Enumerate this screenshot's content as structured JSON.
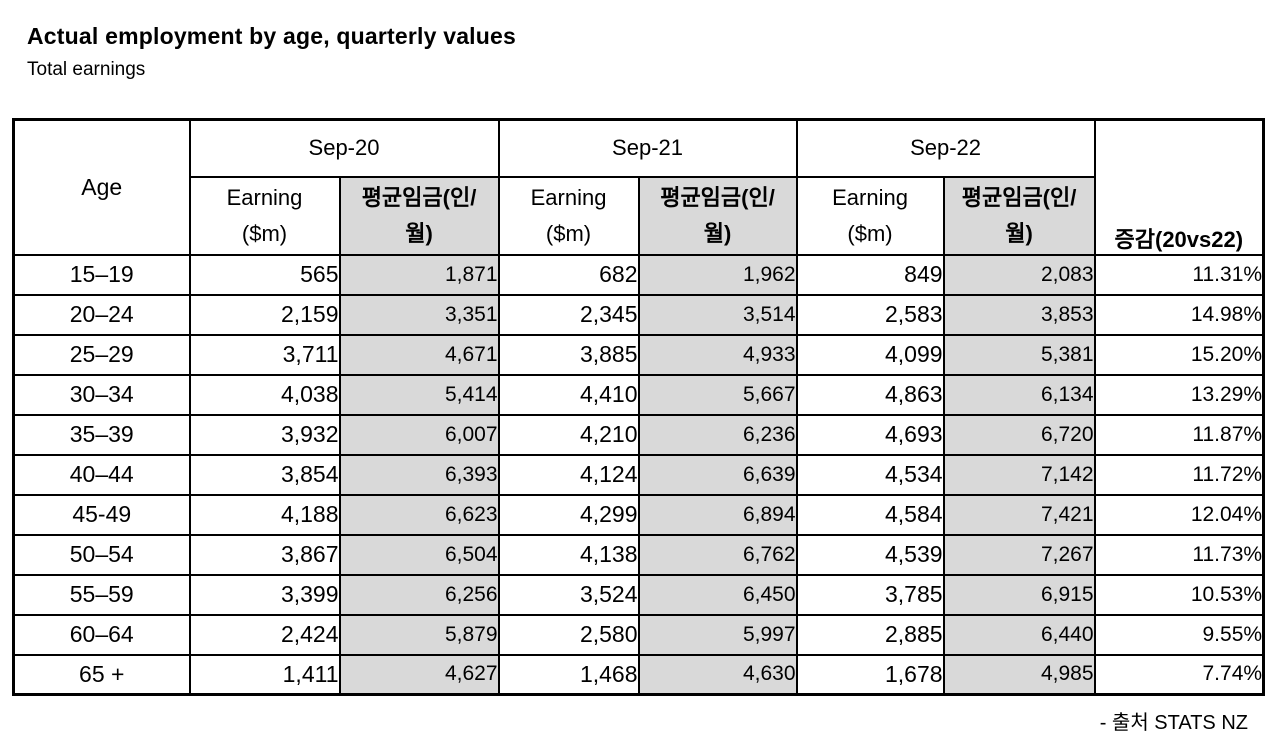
{
  "page": {
    "title": "Actual employment by age, quarterly values",
    "subtitle": "Total earnings",
    "source_note": "- 출처 STATS NZ"
  },
  "table": {
    "corner_label": "Age",
    "change_label": "증감(20vs22)",
    "groups": [
      {
        "label": "Sep-20"
      },
      {
        "label": "Sep-21"
      },
      {
        "label": "Sep-22"
      }
    ],
    "sub_headers": {
      "earning_line1": "Earning",
      "earning_line2": "($m)",
      "avg_line1": "평균임금(인/",
      "avg_line2": "월)"
    },
    "column_kinds": [
      "age",
      "earn",
      "avg",
      "earn",
      "avg",
      "earn",
      "avg",
      "pct"
    ],
    "rows": [
      {
        "cells": [
          "15–19",
          "565",
          "1,871",
          "682",
          "1,962",
          "849",
          "2,083",
          "11.31%"
        ]
      },
      {
        "cells": [
          "20–24",
          "2,159",
          "3,351",
          "2,345",
          "3,514",
          "2,583",
          "3,853",
          "14.98%"
        ]
      },
      {
        "cells": [
          "25–29",
          "3,711",
          "4,671",
          "3,885",
          "4,933",
          "4,099",
          "5,381",
          "15.20%"
        ]
      },
      {
        "cells": [
          "30–34",
          "4,038",
          "5,414",
          "4,410",
          "5,667",
          "4,863",
          "6,134",
          "13.29%"
        ]
      },
      {
        "cells": [
          "35–39",
          "3,932",
          "6,007",
          "4,210",
          "6,236",
          "4,693",
          "6,720",
          "11.87%"
        ]
      },
      {
        "cells": [
          "40–44",
          "3,854",
          "6,393",
          "4,124",
          "6,639",
          "4,534",
          "7,142",
          "11.72%"
        ]
      },
      {
        "cells": [
          "45-49",
          "4,188",
          "6,623",
          "4,299",
          "6,894",
          "4,584",
          "7,421",
          "12.04%"
        ]
      },
      {
        "cells": [
          "50–54",
          "3,867",
          "6,504",
          "4,138",
          "6,762",
          "4,539",
          "7,267",
          "11.73%"
        ]
      },
      {
        "cells": [
          "55–59",
          "3,399",
          "6,256",
          "3,524",
          "6,450",
          "3,785",
          "6,915",
          "10.53%"
        ]
      },
      {
        "cells": [
          "60–64",
          "2,424",
          "5,879",
          "2,580",
          "5,997",
          "2,885",
          "6,440",
          "9.55%"
        ]
      },
      {
        "cells": [
          "65 +",
          "1,411",
          "4,627",
          "1,468",
          "4,630",
          "1,678",
          "4,985",
          "7.74%"
        ]
      }
    ]
  },
  "chart_data": {
    "type": "table",
    "title": "Actual employment by age, quarterly values",
    "subtitle": "Total earnings",
    "categories": [
      "15–19",
      "20–24",
      "25–29",
      "30–34",
      "35–39",
      "40–44",
      "45-49",
      "50–54",
      "55–59",
      "60–64",
      "65 +"
    ],
    "series": [
      {
        "name": "Sep-20 Earning ($m)",
        "values": [
          565,
          2159,
          3711,
          4038,
          3932,
          3854,
          4188,
          3867,
          3399,
          2424,
          1411
        ]
      },
      {
        "name": "Sep-20 평균임금(인/월)",
        "values": [
          1871,
          3351,
          4671,
          5414,
          6007,
          6393,
          6623,
          6504,
          6256,
          5879,
          4627
        ]
      },
      {
        "name": "Sep-21 Earning ($m)",
        "values": [
          682,
          2345,
          3885,
          4410,
          4210,
          4124,
          4299,
          4138,
          3524,
          2580,
          1468
        ]
      },
      {
        "name": "Sep-21 평균임금(인/월)",
        "values": [
          1962,
          3514,
          4933,
          5667,
          6236,
          6639,
          6894,
          6762,
          6450,
          5997,
          4630
        ]
      },
      {
        "name": "Sep-22 Earning ($m)",
        "values": [
          849,
          2583,
          4099,
          4863,
          4693,
          4534,
          4584,
          4539,
          3785,
          2885,
          1678
        ]
      },
      {
        "name": "Sep-22 평균임금(인/월)",
        "values": [
          2083,
          3853,
          5381,
          6134,
          6720,
          7142,
          7421,
          7267,
          6915,
          6440,
          4985
        ]
      },
      {
        "name": "증감(20vs22)",
        "values": [
          "11.31%",
          "14.98%",
          "15.20%",
          "13.29%",
          "11.87%",
          "11.72%",
          "12.04%",
          "11.73%",
          "10.53%",
          "9.55%",
          "7.74%"
        ]
      }
    ],
    "layout": {
      "header_gray_fill": "#d9d9d9",
      "border_color": "#000000",
      "grid": true
    },
    "source": "- 출처 STATS NZ"
  }
}
